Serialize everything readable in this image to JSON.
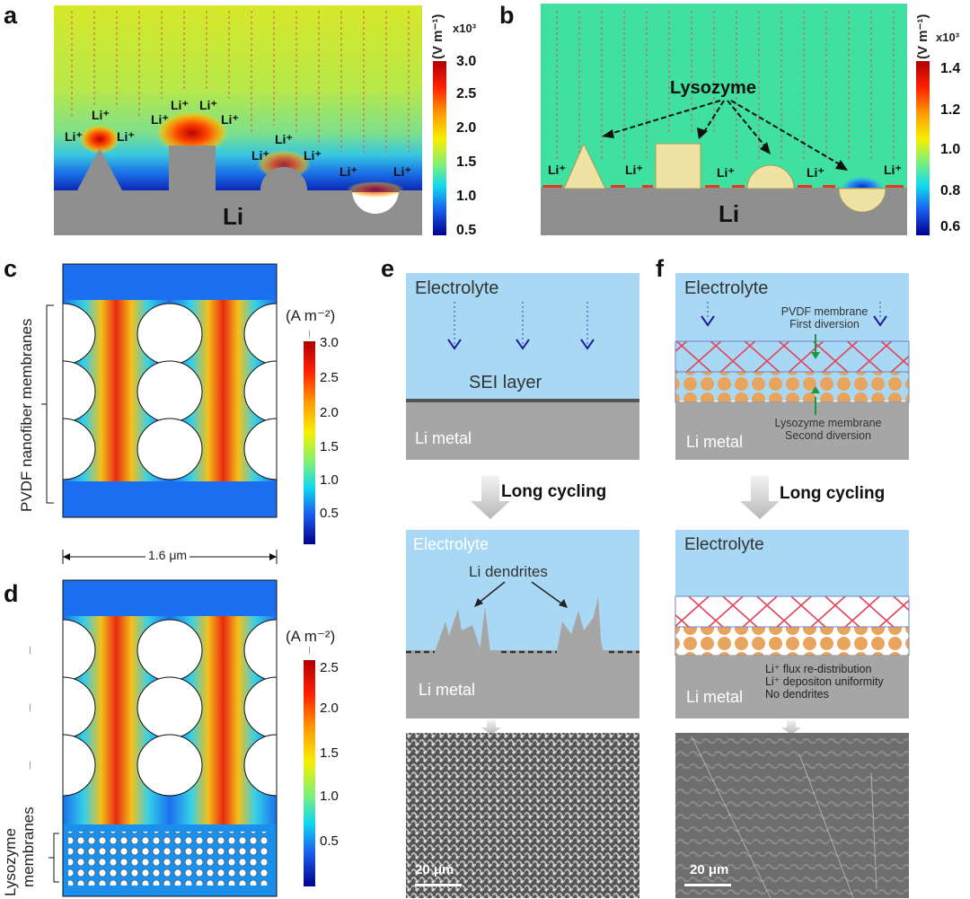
{
  "panels": {
    "a": {
      "label": "a",
      "li_ions": [
        "Li⁺",
        "Li⁺",
        "Li⁺",
        "Li⁺",
        "Li⁺",
        "Li⁺",
        "Li⁺",
        "Li⁺",
        "Li⁺",
        "Li⁺",
        "Li⁺",
        "Li⁺"
      ],
      "substrate": "Li",
      "colorbar": {
        "unit": "(V m⁻¹)",
        "multiplier": "x10³",
        "ticks": [
          "3.0",
          "2.5",
          "2.0",
          "1.5",
          "1.0",
          "0.5"
        ]
      }
    },
    "b": {
      "label": "b",
      "annotation": "Lysozyme",
      "li_ions": [
        "Li⁺",
        "Li⁺",
        "Li⁺",
        "Li⁺",
        "Li⁺"
      ],
      "substrate": "Li",
      "colorbar": {
        "unit": "(V m⁻¹)",
        "multiplier": "x10³",
        "ticks": [
          "1.4",
          "1.2",
          "1.0",
          "0.8",
          "0.6"
        ]
      }
    },
    "c": {
      "label": "c",
      "side_label": "PVDF nanofiber membranes",
      "scale": "1.6 μm",
      "colorbar": {
        "unit": "(A m⁻²)",
        "ticks": [
          "3.0",
          "2.5",
          "2.0",
          "1.5",
          "1.0",
          "0.5"
        ]
      }
    },
    "d": {
      "label": "d",
      "side_label_1": "Lysozyme",
      "side_label_2": "membranes",
      "colorbar": {
        "unit": "(A m⁻²)",
        "ticks": [
          "2.5",
          "2.0",
          "1.5",
          "1.0",
          "0.5"
        ]
      }
    },
    "e": {
      "label": "e",
      "top": {
        "electrolyte": "Electrolyte",
        "sei": "SEI layer",
        "metal": "Li metal"
      },
      "arrow_label": "Long cycling",
      "bottom": {
        "electrolyte": "Electrolyte",
        "dendrites": "Li dendrites",
        "metal": "Li metal"
      },
      "scale_bar": "20 μm"
    },
    "f": {
      "label": "f",
      "top": {
        "electrolyte": "Electrolyte",
        "pvdf_1": "PVDF membrane",
        "pvdf_2": "First diversion",
        "lyso_1": "Lysozyme membrane",
        "lyso_2": "Second diversion",
        "metal": "Li metal"
      },
      "arrow_label": "Long cycling",
      "bottom": {
        "electrolyte": "Electrolyte",
        "note_1": "Li⁺ flux re-distribution",
        "note_2": "Li⁺ depositon uniformity",
        "note_3": "No dendrites",
        "metal": "Li metal"
      },
      "scale_bar": "20 μm"
    }
  },
  "colors": {
    "jet_high": "#b00000",
    "jet_low": "#00008f",
    "electrolyte": "#a9d8f4",
    "li_metal": "#a6a6a6",
    "pvdf_line": "#e0435a",
    "lysozyme_dot": "#e8a45c",
    "lysozyme_shape": "#eee3a3"
  }
}
